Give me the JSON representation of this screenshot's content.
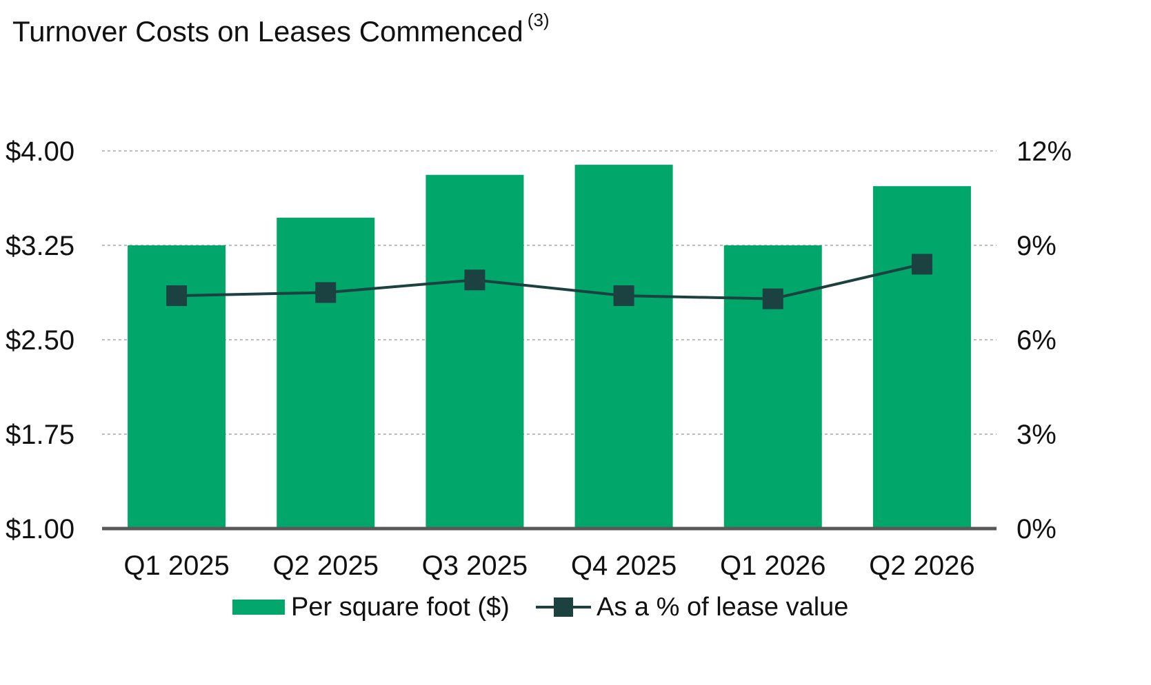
{
  "chart_data": {
    "type": "bar",
    "title": "Turnover Costs on Leases Commenced",
    "title_superscript": "(3)",
    "categories": [
      "Q1 2025",
      "Q2 2025",
      "Q3 2025",
      "Q4 2025",
      "Q1 2026",
      "Q2 2026"
    ],
    "series": [
      {
        "name": "Per square foot ($)",
        "type": "bar",
        "axis": "left",
        "color": "#00A66A",
        "values": [
          3.25,
          3.47,
          3.81,
          3.89,
          3.25,
          3.72
        ]
      },
      {
        "name": "As a % of lease value",
        "type": "line",
        "axis": "right",
        "color": "#1B4240",
        "values": [
          7.4,
          7.5,
          7.9,
          7.4,
          7.3,
          8.4
        ]
      }
    ],
    "y_left": {
      "min": 1.0,
      "max": 4.0,
      "ticks": [
        1.0,
        1.75,
        2.5,
        3.25,
        4.0
      ],
      "tick_labels": [
        "$1.00",
        "$1.75",
        "$2.50",
        "$3.25",
        "$4.00"
      ]
    },
    "y_right": {
      "min": 0,
      "max": 12,
      "ticks": [
        0,
        3,
        6,
        9,
        12
      ],
      "tick_labels": [
        "0%",
        "3%",
        "6%",
        "9%",
        "12%"
      ]
    },
    "grid": true,
    "legend_position": "bottom"
  }
}
